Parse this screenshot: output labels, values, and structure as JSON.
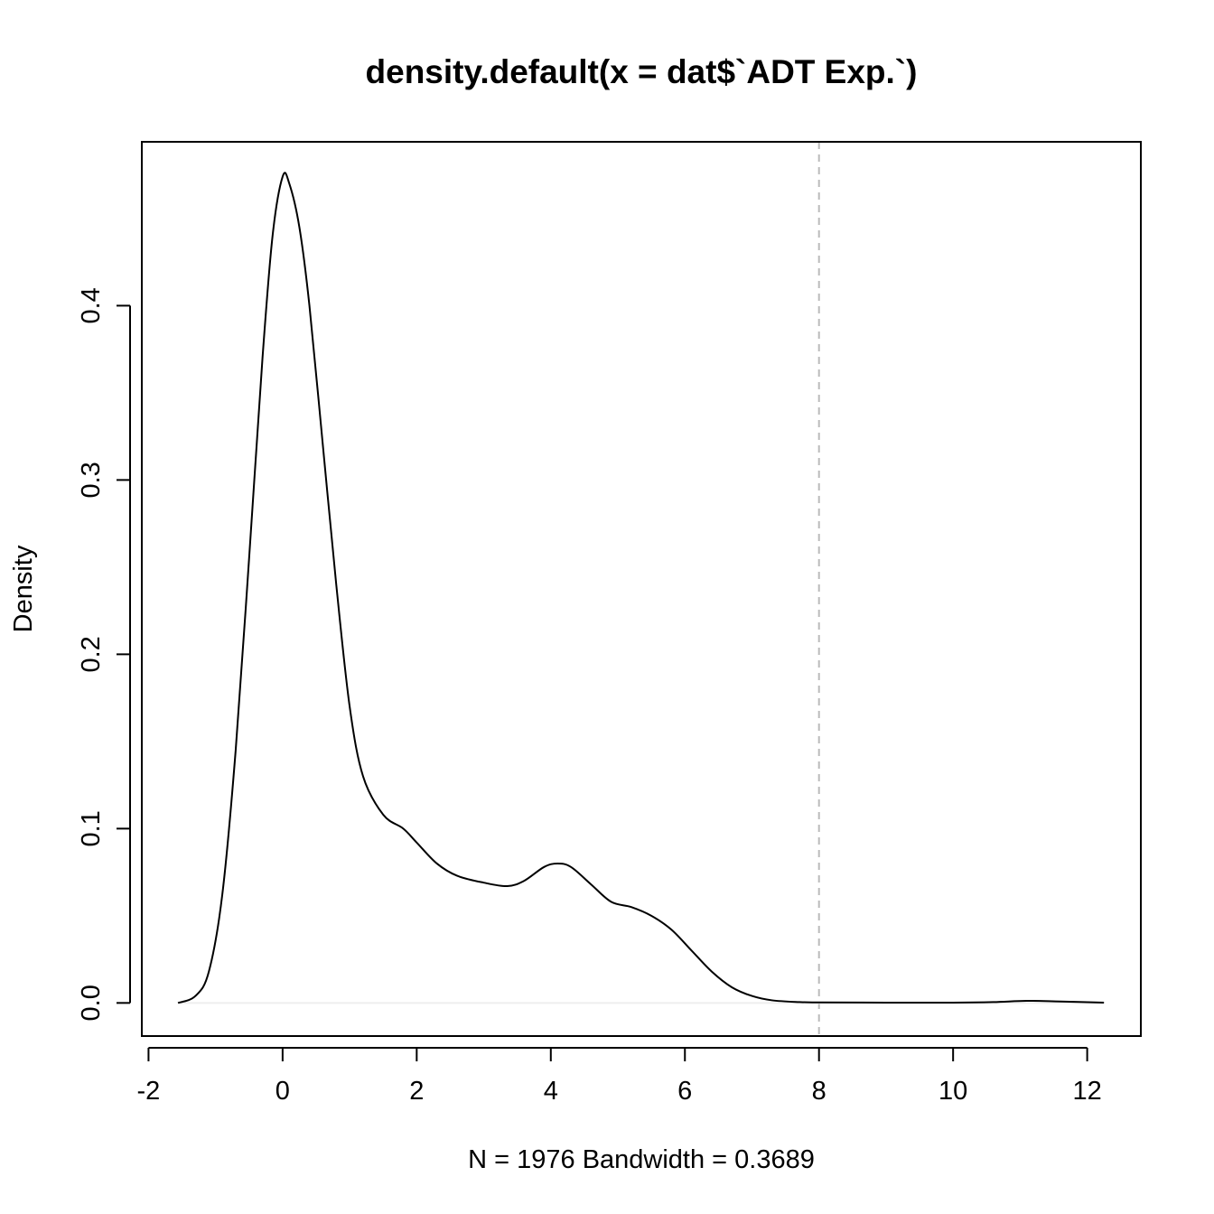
{
  "chart_data": {
    "type": "line",
    "title": "density.default(x = dat$`ADT Exp.`)",
    "xlabel": "N = 1976   Bandwidth = 0.3689",
    "ylabel": "Density",
    "xlim": [
      -2.1,
      12.8
    ],
    "ylim": [
      -0.019,
      0.494
    ],
    "xticks": [
      -2,
      0,
      2,
      4,
      6,
      8,
      10,
      12
    ],
    "xtick_labels": [
      "-2",
      "0",
      "2",
      "4",
      "6",
      "8",
      "10",
      "12"
    ],
    "yticks": [
      0.0,
      0.1,
      0.2,
      0.3,
      0.4
    ],
    "ytick_labels": [
      "0.0",
      "0.1",
      "0.2",
      "0.3",
      "0.4"
    ],
    "grid": false,
    "legend": "none",
    "reference_lines": [
      {
        "axis": "x",
        "value": 8,
        "style": "dashed",
        "color": "#bbbbbb"
      },
      {
        "axis": "y",
        "value": 0,
        "style": "solid",
        "color": "#eeeeee"
      }
    ],
    "series": [
      {
        "color": "#000000",
        "x": [
          -1.56,
          -1.3,
          -1.1,
          -0.9,
          -0.7,
          -0.5,
          -0.3,
          -0.15,
          0.0,
          0.1,
          0.25,
          0.4,
          0.6,
          0.8,
          1.0,
          1.2,
          1.5,
          1.8,
          2.0,
          2.3,
          2.6,
          3.0,
          3.35,
          3.6,
          3.9,
          4.1,
          4.3,
          4.6,
          4.9,
          5.2,
          5.5,
          5.8,
          6.1,
          6.4,
          6.7,
          7.0,
          7.3,
          7.7,
          8.0,
          9.0,
          10.0,
          10.6,
          11.1,
          11.6,
          12.25
        ],
        "y": [
          0.0,
          0.004,
          0.018,
          0.062,
          0.145,
          0.255,
          0.37,
          0.44,
          0.474,
          0.47,
          0.445,
          0.4,
          0.32,
          0.24,
          0.17,
          0.13,
          0.108,
          0.1,
          0.092,
          0.08,
          0.073,
          0.069,
          0.067,
          0.07,
          0.078,
          0.08,
          0.078,
          0.068,
          0.058,
          0.055,
          0.05,
          0.042,
          0.03,
          0.018,
          0.009,
          0.004,
          0.0015,
          0.0005,
          0.0003,
          0.0002,
          0.0002,
          0.0005,
          0.0012,
          0.0008,
          0.0002
        ]
      }
    ]
  }
}
